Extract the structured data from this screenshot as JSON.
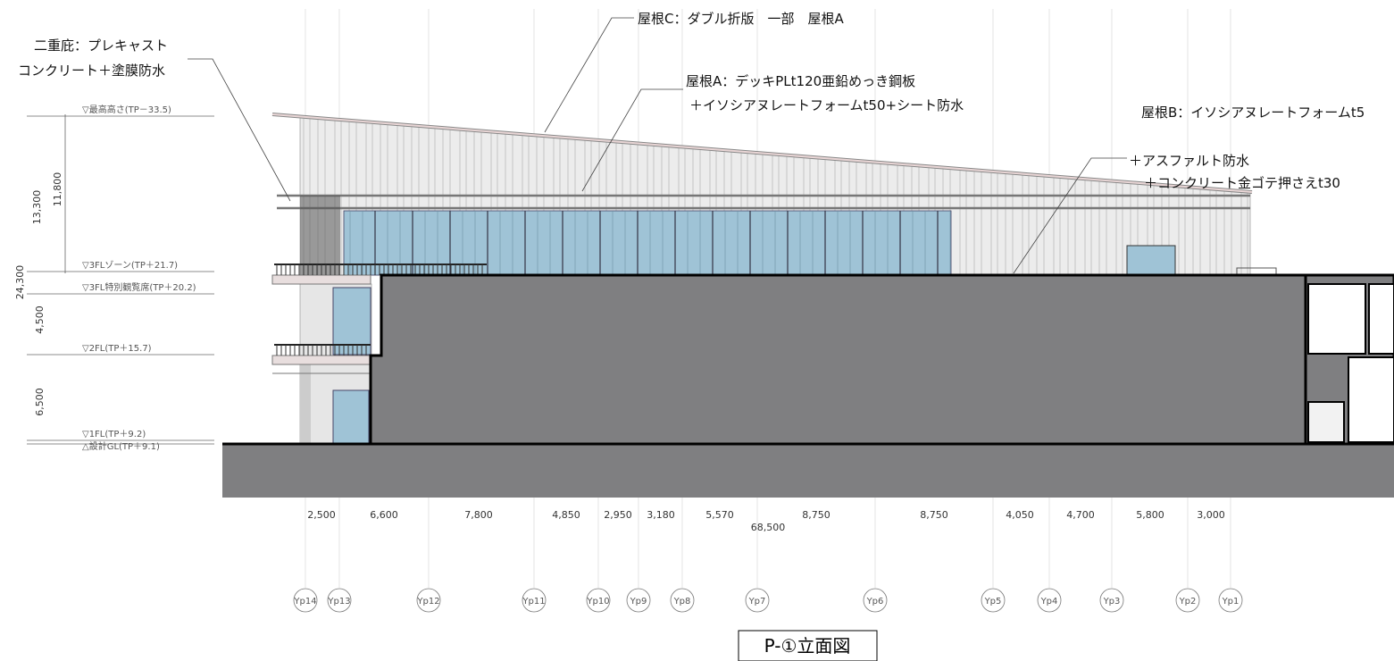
{
  "notes": {
    "canopy": [
      "二重庇：プレキャスト",
      "コンクリート＋塗膜防水"
    ],
    "roof_c": "屋根C：ダブル折版　一部　屋根A",
    "roof_a": [
      "屋根A：デッキPLt120亜鉛めっき鋼板",
      "＋イソシアヌレートフォームt50+シート防水"
    ],
    "roof_b": [
      "屋根B：イソシアヌレートフォームt5",
      "＋アスファルト防水",
      "＋コンクリート金ゴテ押さえt30"
    ]
  },
  "levels": [
    "▽最高高さ(TP－33.5)",
    "▽3FLゾーン(TP＋21.7)",
    "▽3FL特別観覧席(TP＋20.2)",
    "▽2FL(TP＋15.7)",
    "▽1FL(TP＋9.2)",
    "△設計GL(TP＋9.1)"
  ],
  "vertical_dimensions": [
    "13,300",
    "11,800",
    "24,300",
    "4,500",
    "6,500"
  ],
  "horizontal_dimensions": [
    "2,500",
    "6,600",
    "7,800",
    "4,850",
    "2,950",
    "3,180",
    "5,570",
    "8,750",
    "8,750",
    "4,050",
    "4,700",
    "5,800",
    "3,000"
  ],
  "total_dimension": "68,500",
  "grid_labels": [
    "Yp14",
    "Yp13",
    "Yp12",
    "Yp11",
    "Yp10",
    "Yp9",
    "Yp8",
    "Yp7",
    "Yp6",
    "Yp5",
    "Yp4",
    "Yp3",
    "Yp2",
    "Yp1"
  ],
  "title": "P-①立面図"
}
